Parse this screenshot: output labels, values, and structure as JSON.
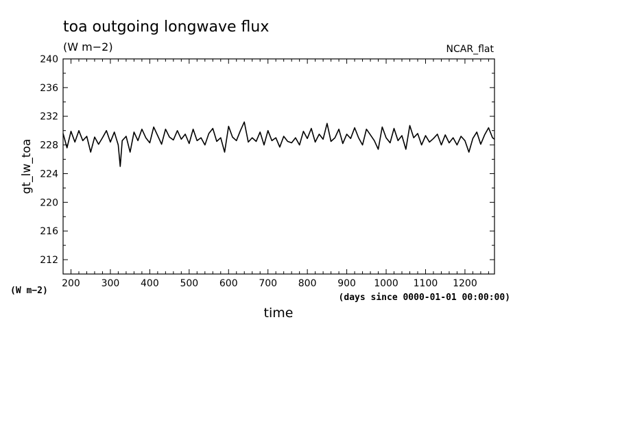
{
  "chart_data": {
    "type": "line",
    "title": "toa outgoing longwave flux",
    "subtitle": "(W m−2)",
    "experiment": "NCAR_flat",
    "xlabel": "time",
    "xunits": "(days since 0000-01-01 00:00:00)",
    "ylabel": "gt_lw_toa",
    "yunits": "(W m−2)",
    "xlim": [
      180,
      1275
    ],
    "ylim": [
      210,
      240
    ],
    "x_ticks": [
      200,
      300,
      400,
      500,
      600,
      700,
      800,
      900,
      1000,
      1100,
      1200
    ],
    "y_ticks": [
      212,
      216,
      220,
      224,
      228,
      232,
      236,
      240
    ],
    "grid": false,
    "legend": "none",
    "line_color": "#000000",
    "series": [
      {
        "x": [
          180,
          190,
          200,
          210,
          220,
          230,
          240,
          250,
          260,
          270,
          280,
          290,
          300,
          310,
          320,
          325,
          330,
          340,
          350,
          360,
          370,
          380,
          390,
          400,
          410,
          420,
          430,
          440,
          450,
          460,
          470,
          480,
          490,
          500,
          510,
          520,
          530,
          540,
          550,
          560,
          570,
          580,
          590,
          600,
          610,
          620,
          630,
          640,
          650,
          660,
          670,
          680,
          690,
          700,
          710,
          720,
          730,
          740,
          750,
          760,
          770,
          780,
          790,
          800,
          810,
          820,
          830,
          840,
          850,
          860,
          870,
          880,
          890,
          900,
          910,
          920,
          930,
          940,
          950,
          960,
          970,
          980,
          990,
          1000,
          1010,
          1020,
          1030,
          1040,
          1050,
          1060,
          1070,
          1080,
          1090,
          1100,
          1110,
          1120,
          1130,
          1140,
          1150,
          1160,
          1170,
          1180,
          1190,
          1200,
          1210,
          1220,
          1230,
          1240,
          1250,
          1260,
          1270,
          1275
        ],
        "y": [
          229.6,
          227.6,
          229.9,
          228.4,
          230.0,
          228.6,
          229.2,
          227.0,
          229.1,
          228.1,
          229.0,
          230.0,
          228.4,
          229.8,
          228.0,
          225.0,
          228.6,
          229.2,
          227.0,
          229.8,
          228.6,
          230.2,
          229.0,
          228.3,
          230.5,
          229.3,
          228.1,
          230.2,
          229.1,
          228.7,
          230.0,
          228.8,
          229.5,
          228.2,
          230.2,
          228.6,
          229.0,
          228.0,
          229.6,
          230.3,
          228.5,
          229.0,
          227.0,
          230.6,
          229.1,
          228.6,
          230.0,
          231.2,
          228.4,
          229.0,
          228.5,
          229.8,
          228.0,
          230.0,
          228.6,
          229.0,
          227.7,
          229.2,
          228.5,
          228.3,
          229.0,
          228.0,
          229.9,
          228.9,
          230.3,
          228.4,
          229.5,
          228.8,
          231.0,
          228.5,
          229.0,
          230.2,
          228.2,
          229.5,
          228.9,
          230.4,
          229.0,
          228.0,
          230.2,
          229.4,
          228.6,
          227.4,
          230.5,
          229.0,
          228.3,
          230.3,
          228.6,
          229.3,
          227.4,
          230.7,
          229.0,
          229.6,
          228.0,
          229.3,
          228.4,
          228.9,
          229.5,
          228.0,
          229.4,
          228.3,
          229.0,
          228.0,
          229.2,
          228.6,
          227.0,
          228.9,
          229.8,
          228.1,
          229.4,
          230.4,
          229.0,
          228.8
        ]
      }
    ]
  }
}
